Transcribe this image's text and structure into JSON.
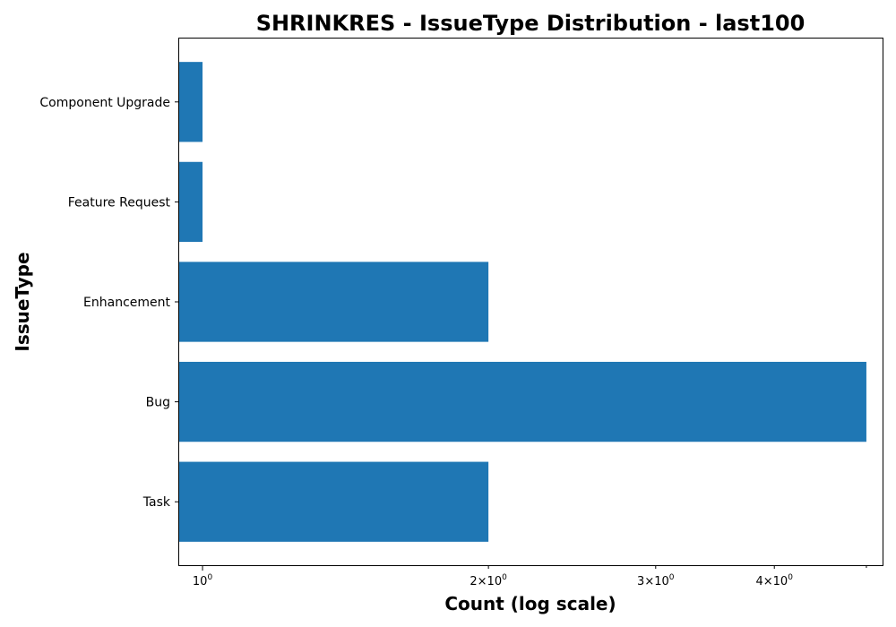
{
  "chart_data": {
    "type": "bar",
    "orientation": "horizontal",
    "title": "SHRINKRES - IssueType Distribution - last100",
    "xlabel": "Count (log scale)",
    "ylabel": "IssueType",
    "x_scale": "log",
    "xlim": [
      0.945,
      5.2
    ],
    "categories": [
      "Task",
      "Bug",
      "Enhancement",
      "Feature Request",
      "Component  Upgrade"
    ],
    "values": [
      2,
      5,
      2,
      1,
      1
    ],
    "x_ticks": [
      {
        "value": 1,
        "base": "10",
        "exp": "0"
      },
      {
        "value": 2,
        "base": "2×10",
        "exp": "0"
      },
      {
        "value": 3,
        "base": "3×10",
        "exp": "0"
      },
      {
        "value": 4,
        "base": "4×10",
        "exp": "0"
      }
    ],
    "bar_color": "#1f77b4",
    "grid": false,
    "legend": "none"
  }
}
